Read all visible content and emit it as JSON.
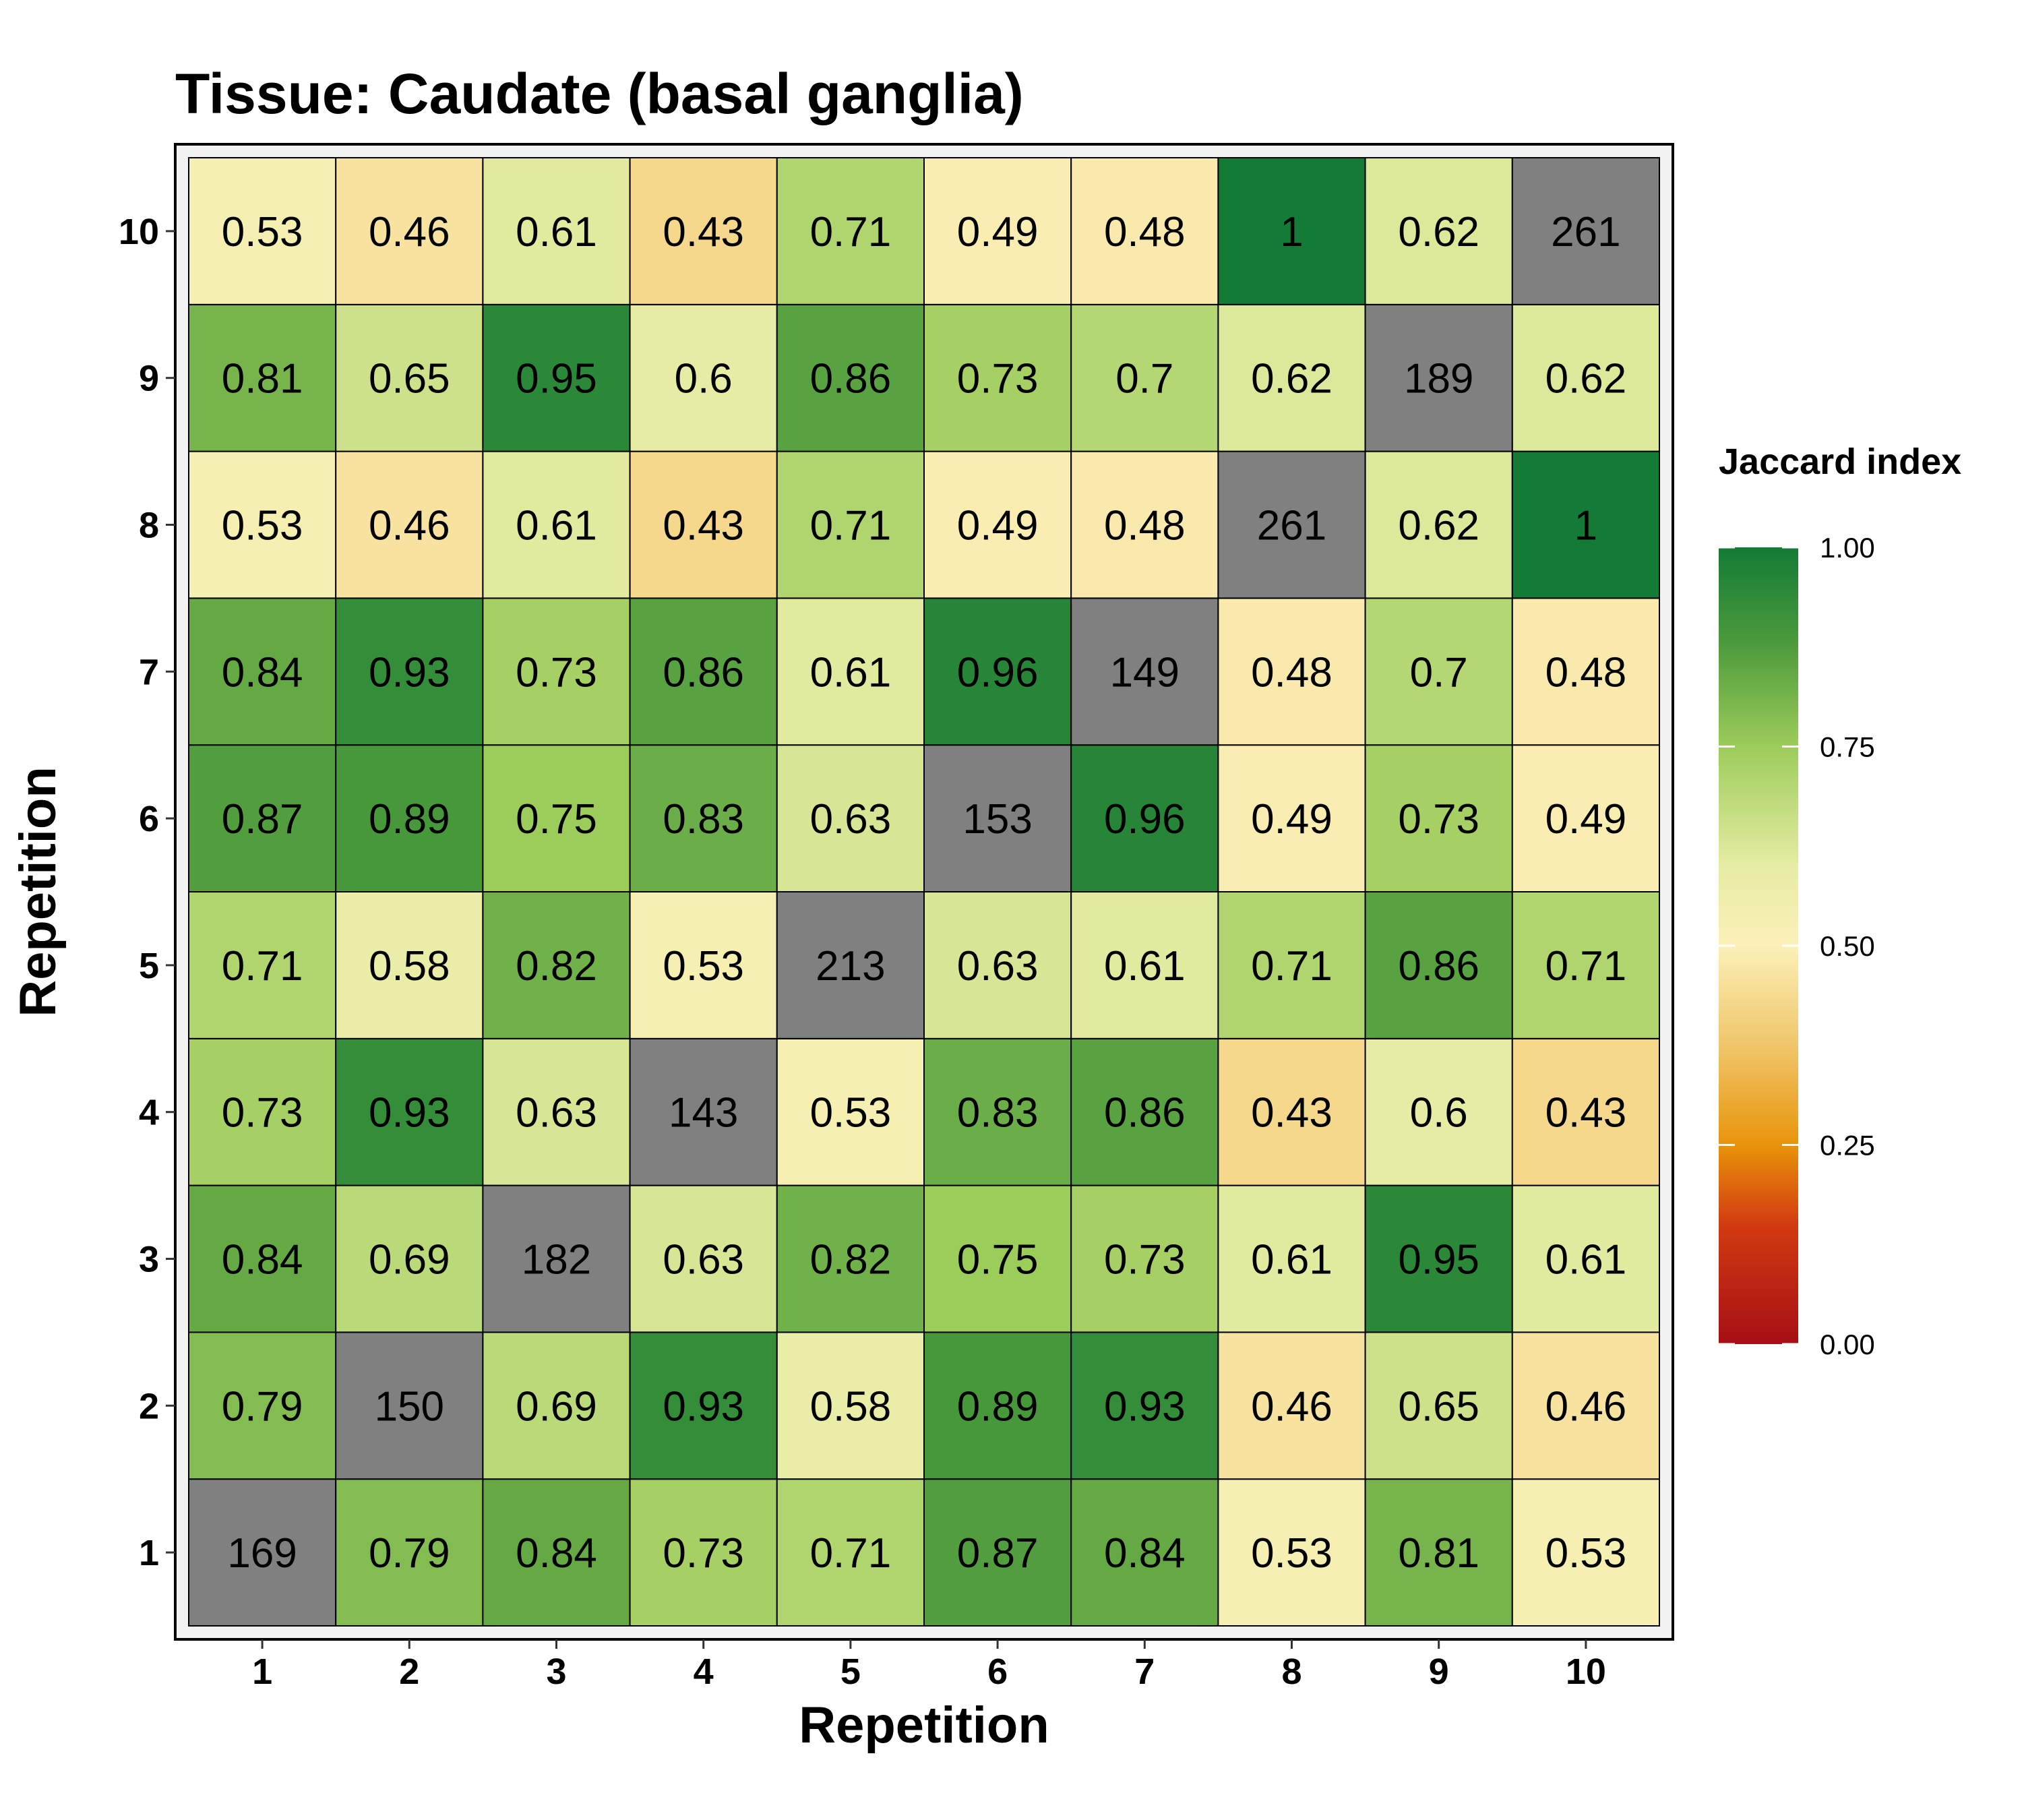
{
  "chart_data": {
    "type": "heatmap",
    "title": "Tissue: Caudate (basal ganglia)",
    "xlabel": "Repetition",
    "ylabel": "Repetition",
    "x_categories": [
      "1",
      "2",
      "3",
      "4",
      "5",
      "6",
      "7",
      "8",
      "9",
      "10"
    ],
    "y_categories": [
      "1",
      "2",
      "3",
      "4",
      "5",
      "6",
      "7",
      "8",
      "9",
      "10"
    ],
    "rows_bottom_to_top": [
      [
        "169",
        "0.79",
        "0.84",
        "0.73",
        "0.71",
        "0.87",
        "0.84",
        "0.53",
        "0.81",
        "0.53"
      ],
      [
        "0.79",
        "150",
        "0.69",
        "0.93",
        "0.58",
        "0.89",
        "0.93",
        "0.46",
        "0.65",
        "0.46"
      ],
      [
        "0.84",
        "0.69",
        "182",
        "0.63",
        "0.82",
        "0.75",
        "0.73",
        "0.61",
        "0.95",
        "0.61"
      ],
      [
        "0.73",
        "0.93",
        "0.63",
        "143",
        "0.53",
        "0.83",
        "0.86",
        "0.43",
        "0.6",
        "0.43"
      ],
      [
        "0.71",
        "0.58",
        "0.82",
        "0.53",
        "213",
        "0.63",
        "0.61",
        "0.71",
        "0.86",
        "0.71"
      ],
      [
        "0.87",
        "0.89",
        "0.75",
        "0.83",
        "0.63",
        "153",
        "0.96",
        "0.49",
        "0.73",
        "0.49"
      ],
      [
        "0.84",
        "0.93",
        "0.73",
        "0.86",
        "0.61",
        "0.96",
        "149",
        "0.48",
        "0.7",
        "0.48"
      ],
      [
        "0.53",
        "0.46",
        "0.61",
        "0.43",
        "0.71",
        "0.49",
        "0.48",
        "261",
        "0.62",
        "1"
      ],
      [
        "0.81",
        "0.65",
        "0.95",
        "0.6",
        "0.86",
        "0.73",
        "0.7",
        "0.62",
        "189",
        "0.62"
      ],
      [
        "0.53",
        "0.46",
        "0.61",
        "0.43",
        "0.71",
        "0.49",
        "0.48",
        "1",
        "0.62",
        "261"
      ]
    ],
    "diagonal_color": "#808080",
    "legend": {
      "title": "Jaccard index",
      "ticks": [
        "0.00",
        "0.25",
        "0.50",
        "0.75",
        "1.00"
      ],
      "range": [
        0,
        1
      ],
      "placement": "right"
    },
    "color_scale": [
      {
        "v": 0.0,
        "c": "#a50f15"
      },
      {
        "v": 0.15,
        "c": "#d23b10"
      },
      {
        "v": 0.25,
        "c": "#e8940a"
      },
      {
        "v": 0.375,
        "c": "#f0c66a"
      },
      {
        "v": 0.5,
        "c": "#fbf0b8"
      },
      {
        "v": 0.6,
        "c": "#e6eca4"
      },
      {
        "v": 0.75,
        "c": "#9ccc5a"
      },
      {
        "v": 0.88,
        "c": "#4c9a3c"
      },
      {
        "v": 1.0,
        "c": "#137b35"
      }
    ]
  }
}
